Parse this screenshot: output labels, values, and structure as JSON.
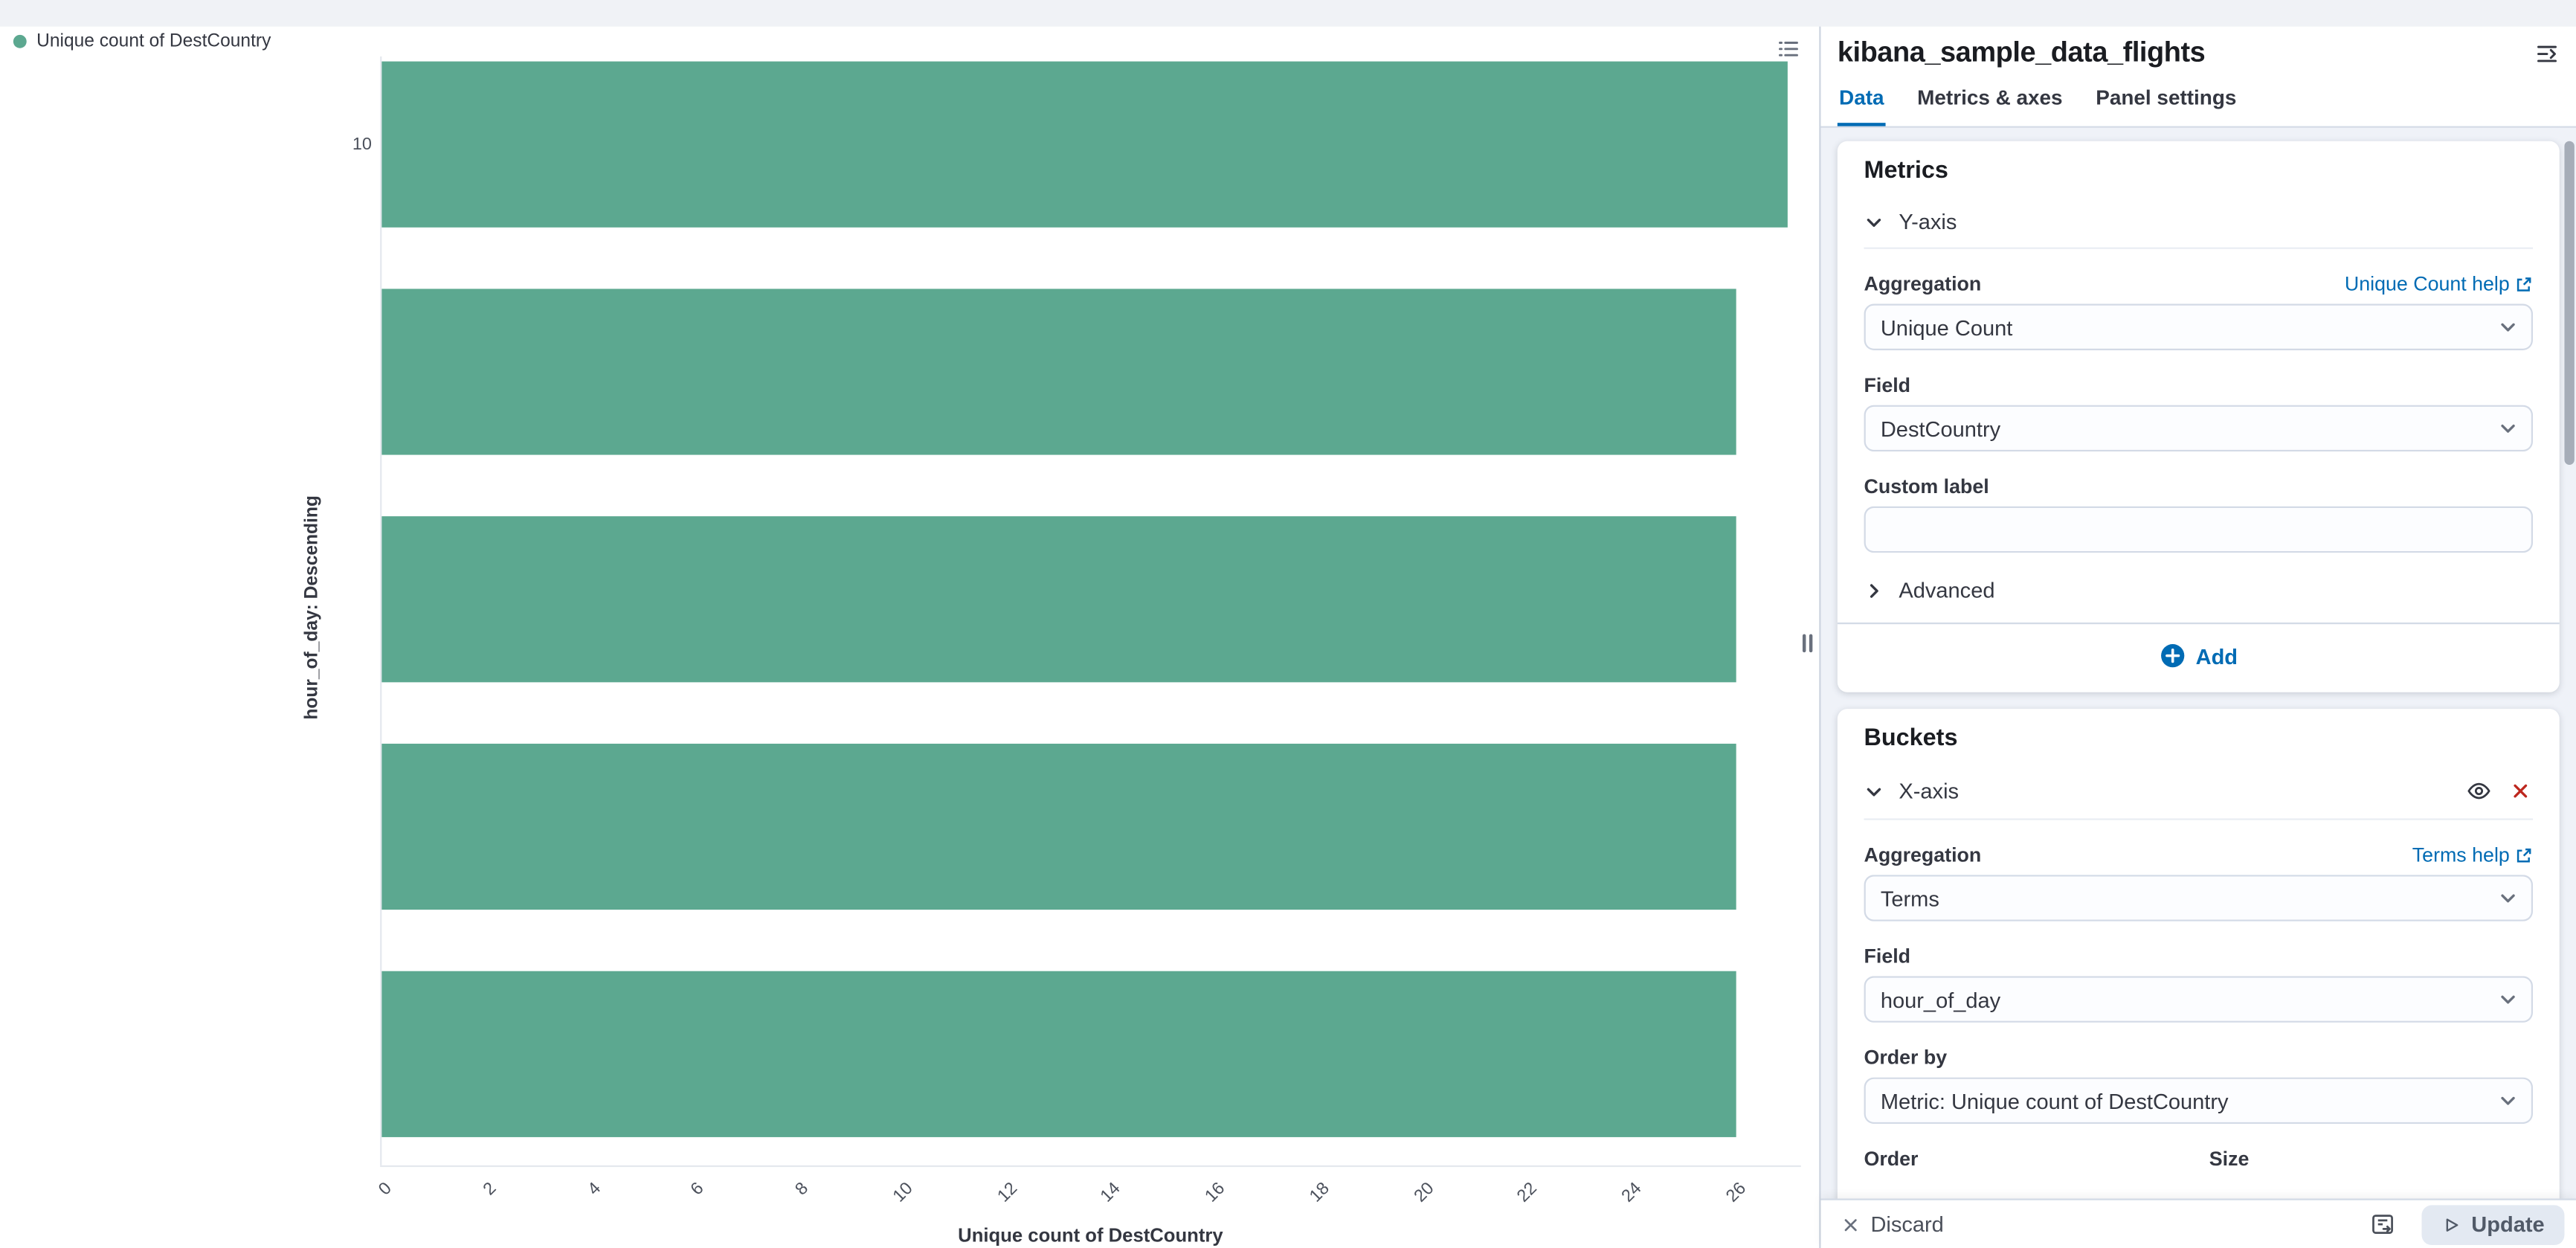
{
  "colors": {
    "bar": "#5CA890",
    "accent": "#006BB4",
    "danger": "#BD271E"
  },
  "chart_data": {
    "type": "bar",
    "orientation": "horizontal",
    "title": "",
    "legend_label": "Unique count of DestCountry",
    "xlabel": "Unique count of DestCountry",
    "ylabel": "hour_of_day: Descending",
    "categories": [
      "10",
      "",
      "",
      "",
      ""
    ],
    "values": [
      27,
      26,
      26,
      26,
      26
    ],
    "xlim": [
      0,
      27.2
    ],
    "xticks": [
      0,
      2,
      4,
      6,
      8,
      10,
      12,
      14,
      16,
      18,
      20,
      22,
      24,
      26
    ],
    "grid": false,
    "legend_position": "top-left"
  },
  "panel": {
    "title": "kibana_sample_data_flights",
    "tabs": [
      {
        "label": "Data",
        "active": true
      },
      {
        "label": "Metrics & axes",
        "active": false
      },
      {
        "label": "Panel settings",
        "active": false
      }
    ],
    "metrics": {
      "heading": "Metrics",
      "accordion_label": "Y-axis",
      "aggregation_label": "Aggregation",
      "help_link": "Unique Count help",
      "aggregation_value": "Unique Count",
      "field_label": "Field",
      "field_value": "DestCountry",
      "custom_label_label": "Custom label",
      "custom_label_value": "",
      "advanced_label": "Advanced",
      "add_label": "Add"
    },
    "buckets": {
      "heading": "Buckets",
      "accordion_label": "X-axis",
      "aggregation_label": "Aggregation",
      "help_link": "Terms help",
      "aggregation_value": "Terms",
      "field_label": "Field",
      "field_value": "hour_of_day",
      "order_by_label": "Order by",
      "order_by_value": "Metric: Unique count of DestCountry",
      "order_label": "Order",
      "size_label": "Size"
    },
    "footer": {
      "discard_label": "Discard",
      "update_label": "Update"
    }
  }
}
